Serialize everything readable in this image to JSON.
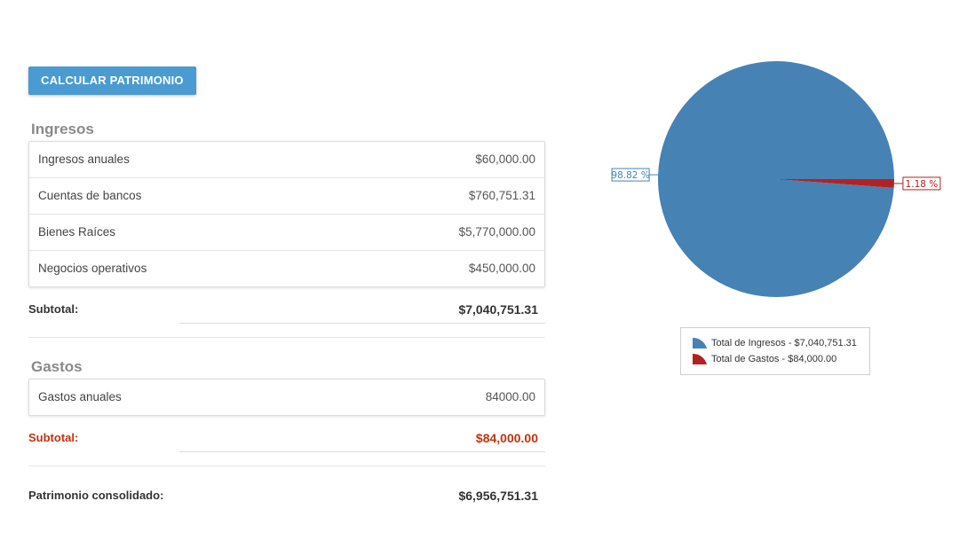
{
  "toolbar": {
    "calc_label": "CALCULAR PATRIMONIO"
  },
  "ingresos": {
    "title": "Ingresos",
    "rows": [
      {
        "label": "Ingresos anuales",
        "value": "$60,000.00"
      },
      {
        "label": "Cuentas de bancos",
        "value": "$760,751.31"
      },
      {
        "label": "Bienes Raíces",
        "value": "$5,770,000.00"
      },
      {
        "label": "Negocios operativos",
        "value": "$450,000.00"
      }
    ],
    "subtotal_label": "Subtotal:",
    "subtotal_value": "$7,040,751.31"
  },
  "gastos": {
    "title": "Gastos",
    "rows": [
      {
        "label": "Gastos anuales",
        "value": "84000.00"
      }
    ],
    "subtotal_label": "Subtotal:",
    "subtotal_value": "$84,000.00"
  },
  "patrimonio": {
    "label": "Patrimonio consolidado:",
    "value": "$6,956,751.31"
  },
  "colors": {
    "accent": "#4a9bd1",
    "ingresos": "#4682b4",
    "gastos": "#b22222",
    "subtotal_red": "#c0330e"
  },
  "chart_data": {
    "type": "pie",
    "slices": [
      {
        "name": "Total de Ingresos - $7,040,751.31",
        "value": 98.82,
        "label": "98.82 %",
        "color": "#4682b4"
      },
      {
        "name": "Total de Gastos - $84,000.00",
        "value": 1.18,
        "label": "1.18 %",
        "color": "#b22222"
      }
    ],
    "legend_placement": "bottom"
  }
}
